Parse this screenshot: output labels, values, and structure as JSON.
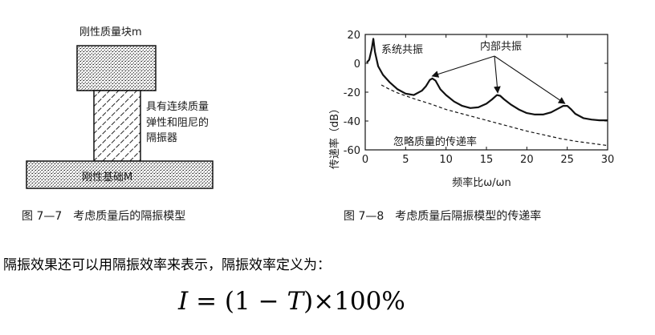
{
  "fig77": {
    "mass_label": "刚性质量块m",
    "spring_label_lines": [
      "具有连续质量",
      "弹性和阻尼的",
      "隔振器"
    ],
    "base_label": "刚性基础M",
    "caption": "图 7—7　考虑质量后的隔振模型"
  },
  "fig78": {
    "caption": "图 7—8　考虑质量后隔振模型的传递率",
    "annotations": {
      "system_resonance": "系统共振",
      "internal_resonance": "内部共振",
      "ignore_mass": "忽略质量的传递率"
    }
  },
  "chart_data": {
    "type": "line",
    "xlabel": "频率比ω/ωn",
    "ylabel": "传递率（dB）",
    "xlim": [
      0,
      30
    ],
    "ylim": [
      -60,
      20
    ],
    "xticks": [
      "0",
      "5",
      "10",
      "15",
      "20",
      "25",
      "30"
    ],
    "yticks": [
      "20",
      "0",
      "-20",
      "-40",
      "-60"
    ],
    "series": [
      {
        "style": "solid",
        "x": [
          0.2,
          0.5,
          0.8,
          1.0,
          1.2,
          1.6,
          2.2,
          3.0,
          4.0,
          5.0,
          6.0,
          7.0,
          7.5,
          8.0,
          8.3,
          8.7,
          9.3,
          10,
          11,
          12,
          13,
          14,
          15,
          15.7,
          16.3,
          16.7,
          17.2,
          18,
          19,
          20,
          21,
          22,
          23,
          24,
          24.5,
          25,
          25.5,
          26,
          27,
          28,
          29,
          30
        ],
        "y": [
          0.5,
          2.5,
          10,
          17,
          8,
          -2,
          -8,
          -13,
          -18,
          -21,
          -22,
          -19,
          -16,
          -11.5,
          -10.5,
          -12,
          -18,
          -22,
          -26.5,
          -29.5,
          -31,
          -30.5,
          -28,
          -25,
          -22,
          -22.5,
          -25,
          -28.5,
          -32,
          -34.5,
          -35.5,
          -35.5,
          -34,
          -31,
          -29.5,
          -29.5,
          -32,
          -35,
          -38,
          -39,
          -39.5,
          -39.5
        ]
      },
      {
        "style": "dashed",
        "x": [
          2,
          3,
          4,
          5,
          6,
          8,
          10,
          12,
          14,
          16,
          18,
          20,
          22,
          24,
          26,
          28,
          30
        ],
        "y": [
          -15,
          -18,
          -20.5,
          -22.5,
          -24.5,
          -28,
          -32,
          -35,
          -38,
          -41,
          -44,
          -47,
          -49.5,
          -52,
          -54,
          -55.5,
          -57
        ]
      }
    ]
  },
  "paragraph": "隔振效果还可以用隔振效率来表示，隔振效率定义为：",
  "formula": {
    "lhs": "I",
    "eq": " = (1 − ",
    "var": "T",
    "rhs": ")×100%"
  }
}
